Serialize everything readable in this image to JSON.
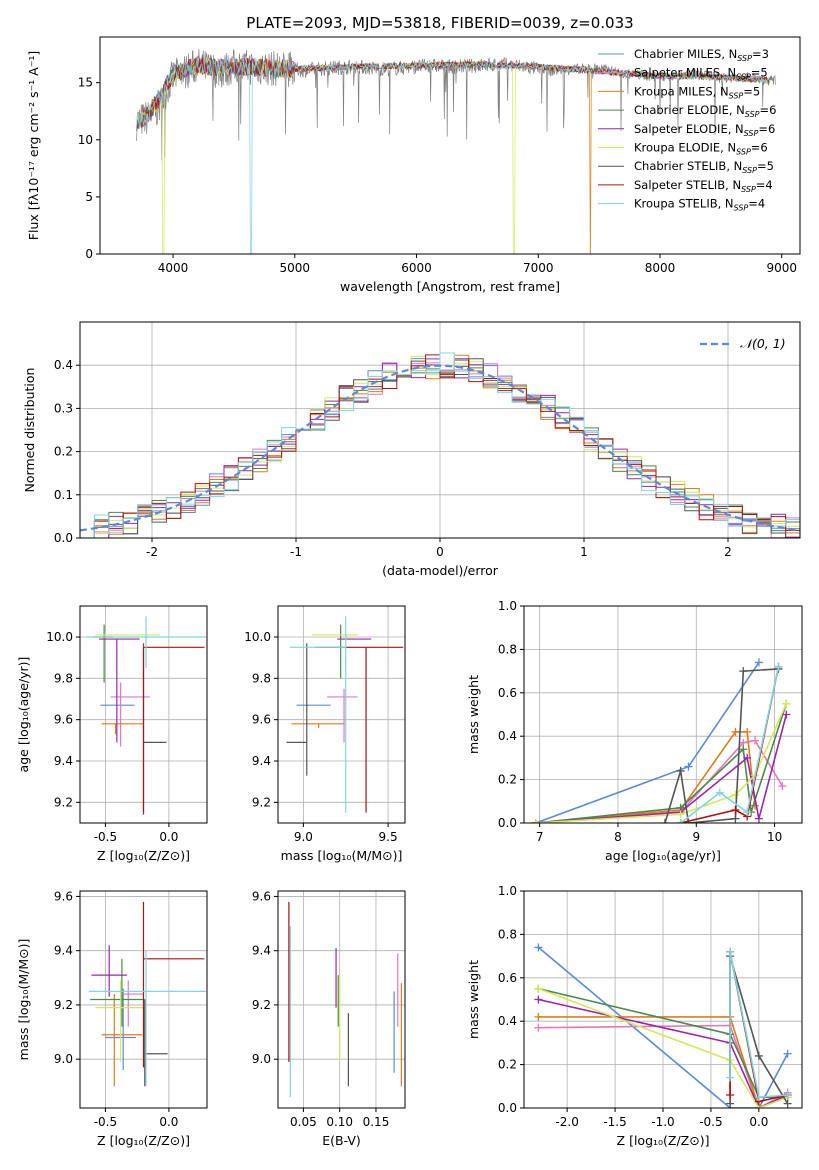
{
  "figure": {
    "title": "PLATE=2093, MJD=53818, FIBERID=0039, z=0.033"
  },
  "models": [
    {
      "name": "Chabrier MILES, N$_{SSP}$=3",
      "color": "#5b8bd6"
    },
    {
      "name": "Salpeter MILES, N$_{SSP}$=5",
      "color": "#e377c2"
    },
    {
      "name": "Kroupa MILES, N$_{SSP}$=5",
      "color": "#e07b1c"
    },
    {
      "name": "Chabrier ELODIE, N$_{SSP}$=6",
      "color": "#4a8a4a"
    },
    {
      "name": "Salpeter ELODIE, N$_{SSP}$=6",
      "color": "#9b27a8"
    },
    {
      "name": "Kroupa ELODIE, N$_{SSP}$=6",
      "color": "#d6e85a"
    },
    {
      "name": "Chabrier STELIB, N$_{SSP}$=5",
      "color": "#555555"
    },
    {
      "name": "Salpeter STELIB, N$_{SSP}$=4",
      "color": "#b01010"
    },
    {
      "name": "Kroupa STELIB, N$_{SSP}$=4",
      "color": "#7fd6e0"
    }
  ],
  "legend_labels": [
    {
      "pre": "Chabrier MILES, N",
      "sub": "SSP",
      "post": "=3"
    },
    {
      "pre": "Salpeter MILES, N",
      "sub": "SSP",
      "post": "=5"
    },
    {
      "pre": "Kroupa MILES, N",
      "sub": "SSP",
      "post": "=5"
    },
    {
      "pre": "Chabrier ELODIE, N",
      "sub": "SSP",
      "post": "=6"
    },
    {
      "pre": "Salpeter ELODIE, N",
      "sub": "SSP",
      "post": "=6"
    },
    {
      "pre": "Kroupa ELODIE, N",
      "sub": "SSP",
      "post": "=6"
    },
    {
      "pre": "Chabrier STELIB, N",
      "sub": "SSP",
      "post": "=5"
    },
    {
      "pre": "Salpeter STELIB, N",
      "sub": "SSP",
      "post": "=4"
    },
    {
      "pre": "Kroupa STELIB, N",
      "sub": "SSP",
      "post": "=4"
    }
  ],
  "chart_data": [
    {
      "id": "spectrum",
      "type": "line",
      "xlabel": "wavelength [Angstrom, rest frame]",
      "ylabel": "Flux [fλ10⁻¹⁷ erg cm⁻² s⁻¹ A⁻¹]",
      "xlim": [
        3400,
        9150
      ],
      "ylim": [
        0,
        19
      ],
      "xticks": [
        4000,
        5000,
        6000,
        7000,
        8000,
        9000
      ],
      "yticks": [
        0,
        5,
        10,
        15
      ],
      "legend": "top-right",
      "data_trace": {
        "name": "data",
        "color": "#808080",
        "x": [
          3700,
          3800,
          3900,
          3950,
          4000,
          4100,
          4200,
          4300,
          4400,
          4500,
          4700,
          4900,
          5100,
          5300,
          5500,
          5700,
          5900,
          6100,
          6300,
          6500,
          6700,
          6900,
          7100,
          7300,
          7500,
          7700,
          7900,
          8100,
          8300,
          8500,
          8700,
          8900
        ],
        "y": [
          11.5,
          12.0,
          13.0,
          14.5,
          15.5,
          16.0,
          16.5,
          16.2,
          16.0,
          16.4,
          16.3,
          16.2,
          16.1,
          16.3,
          16.4,
          16.2,
          16.3,
          16.5,
          16.4,
          16.5,
          16.6,
          16.4,
          16.0,
          16.2,
          16.3,
          15.8,
          15.6,
          15.5,
          15.8,
          15.4,
          15.5,
          15.2
        ]
      },
      "model_trace": {
        "x": [
          3700,
          3800,
          3900,
          4000,
          4200,
          4400,
          4600,
          4800,
          5000,
          5500,
          6000,
          6500,
          7000,
          7500,
          8000,
          8500,
          8900
        ],
        "y": [
          11.6,
          12.2,
          13.8,
          15.8,
          16.5,
          16.3,
          16.4,
          16.3,
          16.2,
          16.4,
          16.5,
          16.6,
          16.4,
          16.0,
          15.6,
          15.5,
          15.2
        ]
      },
      "dropouts": [
        {
          "model": 5,
          "x": 3920
        },
        {
          "model": 8,
          "x": 4640
        },
        {
          "model": 5,
          "x": 6800
        },
        {
          "model": 2,
          "x": 7430
        }
      ]
    },
    {
      "id": "residuals",
      "type": "histogram",
      "xlabel": "(data-model)/error",
      "ylabel": "Normed distribution",
      "xlim": [
        -2.5,
        2.5
      ],
      "ylim": [
        0,
        0.5
      ],
      "xticks": [
        -2,
        -1,
        0,
        1,
        2
      ],
      "yticks": [
        0.0,
        0.1,
        0.2,
        0.3,
        0.4
      ],
      "legend": "top-right",
      "gaussian_label": "𝒩(0, 1)",
      "bin_width": 0.1
    },
    {
      "id": "age-vs-Z",
      "type": "errorbar",
      "xlabel": "Z [log₁₀(Z/Z⊙)]",
      "ylabel": "age  [log₁₀(age/yr)]",
      "xlim": [
        -0.7,
        0.3
      ],
      "ylim": [
        9.1,
        10.15
      ],
      "xticks": [
        -0.5,
        0.0
      ],
      "yticks": [
        9.2,
        9.4,
        9.6,
        9.8,
        10.0
      ],
      "points": [
        {
          "model": 0,
          "x": -0.27,
          "y": 9.67,
          "xerr": [
            0.27,
            0.0
          ],
          "yerr": [
            0.0,
            0.0
          ]
        },
        {
          "model": 1,
          "x": -0.38,
          "y": 9.71,
          "xerr": [
            0.08,
            0.23
          ],
          "yerr": [
            0.24,
            0.07
          ]
        },
        {
          "model": 2,
          "x": -0.42,
          "y": 9.58,
          "xerr": [
            0.11,
            0.22
          ],
          "yerr": [
            0.05,
            0.0
          ]
        },
        {
          "model": 3,
          "x": -0.51,
          "y": 10.0,
          "xerr": [
            0.09,
            0.07
          ],
          "yerr": [
            0.22,
            0.06
          ]
        },
        {
          "model": 4,
          "x": -0.41,
          "y": 9.99,
          "xerr": [
            0.14,
            0.18
          ],
          "yerr": [
            0.5,
            0.0
          ]
        },
        {
          "model": 5,
          "x": -0.37,
          "y": 10.01,
          "xerr": [
            0.21,
            0.3
          ],
          "yerr": [
            0.0,
            0.0
          ]
        },
        {
          "model": 6,
          "x": -0.2,
          "y": 9.49,
          "xerr": [
            0.0,
            0.18
          ],
          "yerr": [
            0.35,
            0.48
          ]
        },
        {
          "model": 7,
          "x": -0.2,
          "y": 9.95,
          "xerr": [
            0.0,
            0.48
          ],
          "yerr": [
            0.8,
            0.0
          ]
        },
        {
          "model": 8,
          "x": -0.18,
          "y": 10.0,
          "xerr": [
            0.47,
            0.47
          ],
          "yerr": [
            0.15,
            0.1
          ]
        }
      ]
    },
    {
      "id": "age-vs-mass",
      "type": "errorbar",
      "xlabel": "mass [log₁₀(M/M⊙)]",
      "ylabel": "",
      "xlim": [
        8.85,
        9.6
      ],
      "ylim": [
        9.1,
        10.15
      ],
      "xticks": [
        9.0,
        9.5
      ],
      "yticks": [
        9.2,
        9.4,
        9.6,
        9.8,
        10.0
      ],
      "points": [
        {
          "model": 0,
          "x": 9.08,
          "y": 9.67,
          "xerr": [
            0.12,
            0.08
          ],
          "yerr": [
            0.0,
            0.0
          ]
        },
        {
          "model": 1,
          "x": 9.24,
          "y": 9.71,
          "xerr": [
            0.1,
            0.08
          ],
          "yerr": [
            0.22,
            0.04
          ]
        },
        {
          "model": 2,
          "x": 9.09,
          "y": 9.58,
          "xerr": [
            0.16,
            0.15
          ],
          "yerr": [
            0.02,
            0.0
          ]
        },
        {
          "model": 3,
          "x": 9.22,
          "y": 10.0,
          "xerr": [
            0.0,
            0.0
          ],
          "yerr": [
            0.2,
            0.06
          ]
        },
        {
          "model": 4,
          "x": 9.32,
          "y": 9.99,
          "xerr": [
            0.12,
            0.08
          ],
          "yerr": [
            0.0,
            0.0
          ]
        },
        {
          "model": 5,
          "x": 9.18,
          "y": 10.01,
          "xerr": [
            0.13,
            0.14
          ],
          "yerr": [
            0.0,
            0.0
          ]
        },
        {
          "model": 6,
          "x": 9.02,
          "y": 9.49,
          "xerr": [
            0.12,
            0.0
          ],
          "yerr": [
            0.16,
            0.48
          ]
        },
        {
          "model": 7,
          "x": 9.37,
          "y": 9.95,
          "xerr": [
            0.3,
            0.22
          ],
          "yerr": [
            0.8,
            0.0
          ]
        },
        {
          "model": 8,
          "x": 9.25,
          "y": 9.95,
          "xerr": [
            0.33,
            0.0
          ],
          "yerr": [
            0.8,
            0.15
          ]
        }
      ]
    },
    {
      "id": "weight-vs-age",
      "type": "line",
      "xlabel": "age  [log₁₀(age/yr)]",
      "ylabel": "mass weight",
      "xlim": [
        6.8,
        10.35
      ],
      "ylim": [
        0,
        1.0
      ],
      "xticks": [
        7,
        8,
        9,
        10
      ],
      "yticks": [
        0.0,
        0.2,
        0.4,
        0.6,
        0.8,
        1.0
      ],
      "series": [
        {
          "model": 0,
          "x": [
            6.95,
            8.9,
            9.8
          ],
          "y": [
            0.0,
            0.26,
            0.74
          ]
        },
        {
          "model": 1,
          "x": [
            6.95,
            8.8,
            9.6,
            9.75,
            10.1
          ],
          "y": [
            0.0,
            0.05,
            0.37,
            0.38,
            0.17
          ]
        },
        {
          "model": 2,
          "x": [
            6.95,
            8.8,
            9.5,
            9.65,
            9.75
          ],
          "y": [
            0.0,
            0.06,
            0.42,
            0.42,
            0.08
          ]
        },
        {
          "model": 3,
          "x": [
            6.95,
            8.8,
            9.6,
            9.7,
            10.15
          ],
          "y": [
            0.0,
            0.07,
            0.34,
            0.05,
            0.55
          ]
        },
        {
          "model": 4,
          "x": [
            6.95,
            8.8,
            9.65,
            9.8,
            10.15
          ],
          "y": [
            0.0,
            0.05,
            0.3,
            0.02,
            0.5
          ]
        },
        {
          "model": 5,
          "x": [
            6.95,
            8.8,
            9.5,
            9.75,
            10.15
          ],
          "y": [
            0.0,
            0.04,
            0.13,
            0.22,
            0.55
          ]
        },
        {
          "model": 6,
          "x": [
            8.6,
            8.8,
            8.9,
            9.5,
            9.6,
            10.05
          ],
          "y": [
            0.0,
            0.24,
            0.0,
            0.02,
            0.7,
            0.71
          ]
        },
        {
          "model": 7,
          "x": [
            8.8,
            9.5,
            9.65,
            10.05
          ],
          "y": [
            0.0,
            0.06,
            0.03,
            0.72
          ]
        },
        {
          "model": 8,
          "x": [
            8.8,
            9.3,
            9.65,
            10.05
          ],
          "y": [
            0.0,
            0.14,
            0.05,
            0.72
          ]
        }
      ]
    },
    {
      "id": "mass-vs-Z",
      "type": "errorbar",
      "xlabel": "Z [log₁₀(Z/Z⊙)]",
      "ylabel": "mass [log₁₀(M/M⊙)]",
      "xlim": [
        -0.7,
        0.3
      ],
      "ylim": [
        8.82,
        9.62
      ],
      "xticks": [
        -0.5,
        0.0
      ],
      "yticks": [
        9.0,
        9.2,
        9.4,
        9.6
      ],
      "points": [
        {
          "model": 0,
          "x": -0.36,
          "y": 9.08,
          "xerr": [
            0.14,
            0.1
          ],
          "yerr": [
            0.12,
            0.18
          ]
        },
        {
          "model": 1,
          "x": -0.32,
          "y": 9.24,
          "xerr": [
            0.05,
            0.12
          ],
          "yerr": [
            0.12,
            0.05
          ]
        },
        {
          "model": 2,
          "x": -0.43,
          "y": 9.09,
          "xerr": [
            0.1,
            0.22
          ],
          "yerr": [
            0.19,
            0.15
          ]
        },
        {
          "model": 3,
          "x": -0.37,
          "y": 9.22,
          "xerr": [
            0.25,
            0.18
          ],
          "yerr": [
            0.1,
            0.15
          ]
        },
        {
          "model": 4,
          "x": -0.47,
          "y": 9.31,
          "xerr": [
            0.14,
            0.14
          ],
          "yerr": [
            0.08,
            0.11
          ]
        },
        {
          "model": 5,
          "x": -0.38,
          "y": 9.19,
          "xerr": [
            0.2,
            0.2
          ],
          "yerr": [
            0.2,
            0.1
          ]
        },
        {
          "model": 6,
          "x": -0.19,
          "y": 9.02,
          "xerr": [
            0.0,
            0.18
          ],
          "yerr": [
            0.12,
            0.2
          ]
        },
        {
          "model": 7,
          "x": -0.2,
          "y": 9.37,
          "xerr": [
            0.0,
            0.48
          ],
          "yerr": [
            0.4,
            0.21
          ]
        },
        {
          "model": 8,
          "x": -0.18,
          "y": 9.25,
          "xerr": [
            0.45,
            0.47
          ],
          "yerr": [
            0.35,
            0.15
          ]
        }
      ]
    },
    {
      "id": "mass-vs-EBV",
      "type": "errorbar",
      "xlabel": "E(B-V)",
      "ylabel": "",
      "xlim": [
        0.015,
        0.19
      ],
      "ylim": [
        8.82,
        9.62
      ],
      "xticks": [
        0.05,
        0.1,
        0.15
      ],
      "yticks": [
        9.0,
        9.2,
        9.4,
        9.6
      ],
      "points": [
        {
          "model": 0,
          "x": 0.175,
          "y": 9.08,
          "xerr": [
            0,
            0
          ],
          "yerr": [
            0.13,
            0.17
          ]
        },
        {
          "model": 1,
          "x": 0.18,
          "y": 9.24,
          "xerr": [
            0,
            0
          ],
          "yerr": [
            0.12,
            0.15
          ]
        },
        {
          "model": 2,
          "x": 0.185,
          "y": 9.09,
          "xerr": [
            0,
            0
          ],
          "yerr": [
            0.19,
            0.19
          ]
        },
        {
          "model": 3,
          "x": 0.098,
          "y": 9.22,
          "xerr": [
            0,
            0
          ],
          "yerr": [
            0.1,
            0.09
          ]
        },
        {
          "model": 4,
          "x": 0.095,
          "y": 9.31,
          "xerr": [
            0,
            0
          ],
          "yerr": [
            0.12,
            0.1
          ]
        },
        {
          "model": 5,
          "x": 0.1,
          "y": 9.19,
          "xerr": [
            0,
            0
          ],
          "yerr": [
            0.2,
            0.12
          ]
        },
        {
          "model": 6,
          "x": 0.112,
          "y": 9.02,
          "xerr": [
            0,
            0
          ],
          "yerr": [
            0.12,
            0.15
          ]
        },
        {
          "model": 7,
          "x": 0.03,
          "y": 9.37,
          "xerr": [
            0,
            0
          ],
          "yerr": [
            0.38,
            0.21
          ]
        },
        {
          "model": 8,
          "x": 0.032,
          "y": 9.25,
          "xerr": [
            0,
            0
          ],
          "yerr": [
            0.39,
            0.24
          ]
        }
      ]
    },
    {
      "id": "weight-vs-Z",
      "type": "line",
      "xlabel": "Z [log₁₀(Z/Z⊙)]",
      "ylabel": "mass weight",
      "xlim": [
        -2.45,
        0.45
      ],
      "ylim": [
        0,
        1.0
      ],
      "xticks": [
        -2.0,
        -1.5,
        -1.0,
        -0.5,
        0.0
      ],
      "yticks": [
        0.0,
        0.2,
        0.4,
        0.6,
        0.8,
        1.0
      ],
      "series": [
        {
          "model": 0,
          "x": [
            -2.3,
            -0.3,
            0.0,
            0.3
          ],
          "y": [
            0.74,
            0.0,
            0.0,
            0.25
          ]
        },
        {
          "model": 1,
          "x": [
            -2.3,
            -0.3,
            0.0,
            0.3
          ],
          "y": [
            0.37,
            0.38,
            0.0,
            0.07
          ]
        },
        {
          "model": 2,
          "x": [
            -2.3,
            -0.3,
            0.0,
            0.3
          ],
          "y": [
            0.42,
            0.42,
            0.0,
            0.06
          ]
        },
        {
          "model": 3,
          "x": [
            -2.3,
            -0.3,
            0.0,
            0.3
          ],
          "y": [
            0.55,
            0.34,
            0.05,
            0.05
          ]
        },
        {
          "model": 4,
          "x": [
            -2.3,
            -0.3,
            0.0,
            0.3
          ],
          "y": [
            0.5,
            0.3,
            0.0,
            0.06
          ]
        },
        {
          "model": 5,
          "x": [
            -2.3,
            -0.3,
            0.0,
            0.3
          ],
          "y": [
            0.55,
            0.22,
            0.0,
            0.05
          ]
        },
        {
          "model": 6,
          "x": [
            -0.3,
            -0.3,
            0.0,
            0.3
          ],
          "y": [
            0.02,
            0.7,
            0.24,
            0.02
          ]
        },
        {
          "model": 7,
          "x": [
            -0.3,
            -0.3,
            0.0,
            0.3
          ],
          "y": [
            0.06,
            0.72,
            0.03,
            0.06
          ]
        },
        {
          "model": 8,
          "x": [
            -0.3,
            -0.3,
            0.0,
            0.3
          ],
          "y": [
            0.14,
            0.72,
            0.05,
            0.06
          ]
        }
      ]
    }
  ]
}
